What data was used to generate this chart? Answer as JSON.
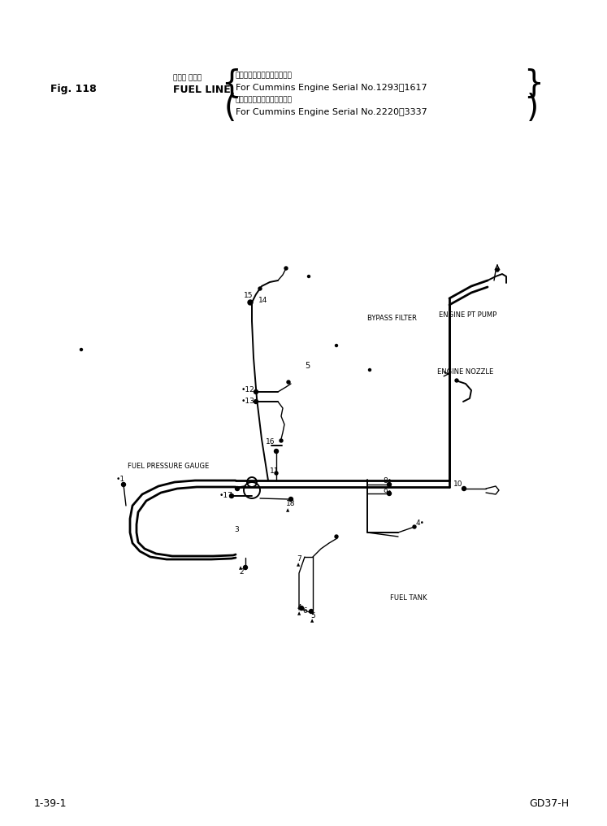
{
  "bg_color": "#ffffff",
  "fig_label": "Fig. 118",
  "jp_line1": "フェル ライン",
  "en_line1": "FUEL LINE",
  "bracket1_jp": "カミンズエンジン用通用号機",
  "bracket1_en": "For Cummins Engine Serial No.1293～1617",
  "bracket2_jp": "カミンズエンジン用通用号機",
  "bracket2_en": "For Cummins Engine Serial No.2220～3337",
  "footer_left": "1-39-1",
  "footer_right": "GD37-H",
  "bypass_filter": "BYPASS FILTER",
  "engine_pt_pump": "ENGINE PT PUMP",
  "engine_nozzle": "ENGINE NOZZLE",
  "fuel_pressure_gauge": "FUEL PRESSURE GAUGE",
  "fuel_tank": "FUEL TANK",
  "label_5_diag": "5"
}
